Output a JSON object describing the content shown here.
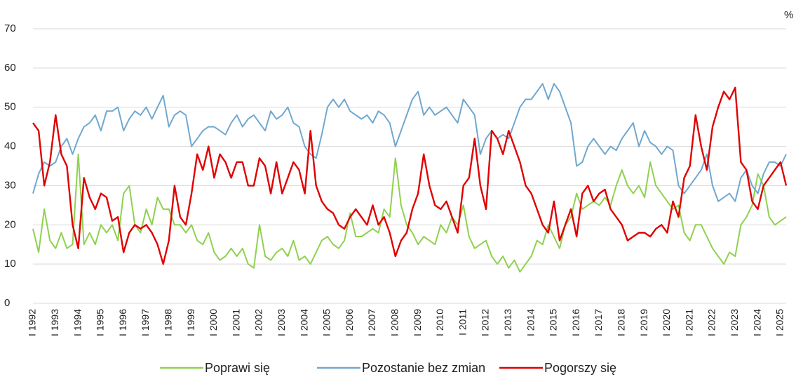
{
  "chart_data": {
    "type": "line",
    "unit": "%",
    "categories": [
      "I 1992",
      null,
      null,
      null,
      "I 1993",
      null,
      null,
      null,
      "I 1994",
      null,
      null,
      null,
      "I 1995",
      null,
      null,
      null,
      "I 1996",
      null,
      null,
      null,
      "I 1997",
      null,
      null,
      null,
      "I 1998",
      null,
      null,
      null,
      "I 1999",
      null,
      null,
      null,
      "I 2000",
      null,
      null,
      null,
      "I 2001",
      null,
      null,
      null,
      "I 2002",
      null,
      null,
      null,
      "I 2003",
      null,
      null,
      null,
      "I 2004",
      null,
      null,
      null,
      "I 2005",
      null,
      null,
      null,
      "I 2006",
      null,
      null,
      null,
      "I 2007",
      null,
      null,
      null,
      "I 2008",
      null,
      null,
      null,
      "I 2009",
      null,
      null,
      null,
      "I 2010",
      null,
      null,
      null,
      "I 2011",
      null,
      null,
      null,
      "I 2012",
      null,
      null,
      null,
      "I 2013",
      null,
      null,
      null,
      "I 2014",
      null,
      null,
      null,
      "I 2015",
      null,
      null,
      null,
      "I 2016",
      null,
      null,
      null,
      "I 2017",
      null,
      null,
      null,
      "I 2018",
      null,
      null,
      null,
      "I 2019",
      null,
      null,
      null,
      "I 2020",
      null,
      null,
      null,
      "I 2021",
      null,
      null,
      null,
      "I 2022",
      null,
      null,
      null,
      "I 2023",
      null,
      null,
      null,
      "I 2024",
      null,
      null,
      null,
      "I 2025",
      null
    ],
    "series": [
      {
        "name": "Poprawi się",
        "color": "#8fd14f",
        "values": [
          19,
          13,
          24,
          16,
          14,
          18,
          14,
          15,
          38,
          15,
          18,
          15,
          20,
          18,
          20,
          16,
          28,
          30,
          20,
          18,
          24,
          20,
          27,
          24,
          24,
          20,
          20,
          18,
          20,
          16,
          15,
          18,
          13,
          11,
          12,
          14,
          12,
          14,
          10,
          9,
          20,
          12,
          11,
          13,
          14,
          12,
          16,
          11,
          12,
          10,
          13,
          16,
          17,
          15,
          14,
          16,
          23,
          17,
          17,
          18,
          19,
          18,
          24,
          22,
          37,
          25,
          20,
          18,
          15,
          17,
          16,
          15,
          20,
          18,
          22,
          20,
          25,
          17,
          14,
          15,
          16,
          12,
          10,
          12,
          9,
          11,
          8,
          10,
          12,
          16,
          15,
          20,
          17,
          14,
          20,
          22,
          28,
          24,
          25,
          26,
          25,
          27,
          25,
          30,
          34,
          30,
          28,
          30,
          27,
          36,
          30,
          28,
          26,
          24,
          25,
          18,
          16,
          20,
          20,
          17,
          14,
          12,
          10,
          13,
          12,
          20,
          22,
          25,
          33,
          30,
          22,
          20,
          21,
          22
        ]
      },
      {
        "name": "Pozostanie bez zmian",
        "color": "#6fa8d0",
        "values": [
          28,
          33,
          36,
          35,
          36,
          40,
          42,
          38,
          42,
          45,
          46,
          48,
          44,
          49,
          49,
          50,
          44,
          47,
          49,
          48,
          50,
          47,
          50,
          53,
          45,
          48,
          49,
          48,
          40,
          42,
          44,
          45,
          45,
          44,
          43,
          46,
          48,
          45,
          47,
          48,
          46,
          44,
          49,
          47,
          48,
          50,
          46,
          45,
          40,
          38,
          37,
          43,
          50,
          52,
          50,
          52,
          49,
          48,
          47,
          48,
          46,
          49,
          48,
          46,
          40,
          44,
          48,
          52,
          54,
          48,
          50,
          48,
          49,
          50,
          48,
          46,
          52,
          50,
          48,
          38,
          42,
          44,
          42,
          43,
          42,
          46,
          50,
          52,
          52,
          54,
          56,
          52,
          56,
          54,
          50,
          46,
          35,
          36,
          40,
          42,
          40,
          38,
          40,
          39,
          42,
          44,
          46,
          40,
          44,
          41,
          40,
          38,
          40,
          39,
          30,
          28,
          30,
          32,
          34,
          38,
          30,
          26,
          27,
          28,
          26,
          32,
          34,
          30,
          28,
          33,
          36,
          36,
          35,
          38
        ]
      },
      {
        "name": "Pogorszy się",
        "color": "#e00000",
        "values": [
          46,
          44,
          30,
          36,
          48,
          38,
          35,
          20,
          14,
          32,
          27,
          24,
          28,
          27,
          21,
          22,
          13,
          18,
          20,
          19,
          20,
          18,
          15,
          10,
          16,
          30,
          22,
          20,
          28,
          38,
          34,
          40,
          32,
          38,
          36,
          32,
          36,
          36,
          30,
          30,
          37,
          35,
          28,
          36,
          28,
          32,
          36,
          34,
          28,
          44,
          30,
          26,
          24,
          23,
          20,
          19,
          22,
          24,
          22,
          20,
          25,
          20,
          22,
          18,
          12,
          16,
          18,
          24,
          28,
          38,
          30,
          25,
          24,
          26,
          22,
          18,
          30,
          32,
          42,
          30,
          24,
          44,
          42,
          38,
          44,
          40,
          36,
          30,
          28,
          24,
          20,
          18,
          26,
          16,
          20,
          24,
          17,
          28,
          30,
          26,
          28,
          29,
          24,
          22,
          20,
          16,
          17,
          18,
          18,
          17,
          19,
          20,
          18,
          26,
          22,
          32,
          35,
          48,
          40,
          34,
          45,
          50,
          54,
          52,
          55,
          36,
          34,
          26,
          24,
          30,
          32,
          34,
          36,
          30
        ]
      }
    ],
    "ylim": [
      0,
      70
    ],
    "yticks": [
      0,
      10,
      20,
      30,
      40,
      50,
      60,
      70
    ],
    "grid": true,
    "legend": "bottom"
  }
}
